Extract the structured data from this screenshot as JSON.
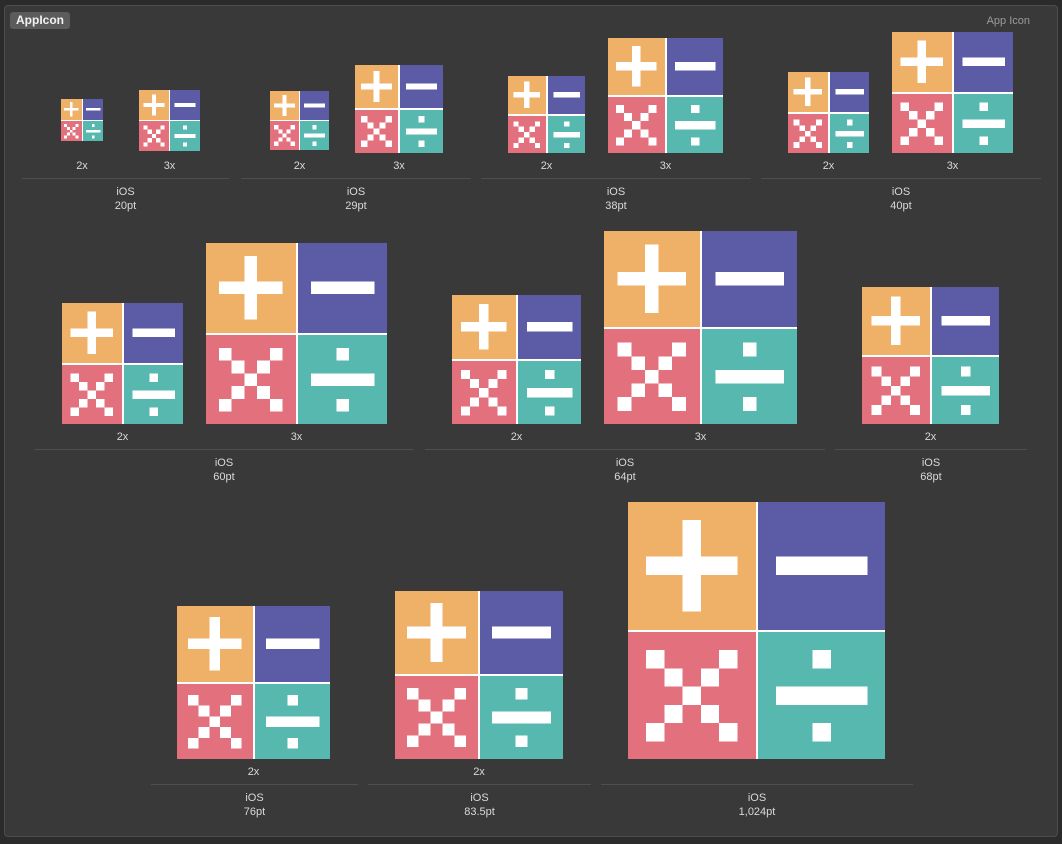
{
  "header": {
    "title": "AppIcon",
    "type_label": "App Icon"
  },
  "colors": {
    "background": "#393939",
    "plus": "#EFB067",
    "minus": "#5C5BA6",
    "times": "#E2707D",
    "divide": "#57B8B0",
    "symbol": "#FFFFFF"
  },
  "icon_quadrants": [
    "plus-icon",
    "minus-icon",
    "times-icon",
    "divide-icon"
  ],
  "groups": [
    {
      "platform": "iOS",
      "size": "20pt",
      "slots": [
        "2x",
        "3x"
      ]
    },
    {
      "platform": "iOS",
      "size": "29pt",
      "slots": [
        "2x",
        "3x"
      ]
    },
    {
      "platform": "iOS",
      "size": "38pt",
      "slots": [
        "2x",
        "3x"
      ]
    },
    {
      "platform": "iOS",
      "size": "40pt",
      "slots": [
        "2x",
        "3x"
      ]
    },
    {
      "platform": "iOS",
      "size": "60pt",
      "slots": [
        "2x",
        "3x"
      ]
    },
    {
      "platform": "iOS",
      "size": "64pt",
      "slots": [
        "2x",
        "3x"
      ]
    },
    {
      "platform": "iOS",
      "size": "68pt",
      "slots": [
        "2x"
      ]
    },
    {
      "platform": "iOS",
      "size": "76pt",
      "slots": [
        "2x"
      ]
    },
    {
      "platform": "iOS",
      "size": "83.5pt",
      "slots": [
        "2x"
      ]
    },
    {
      "platform": "iOS",
      "size": "1,024pt",
      "slots": []
    }
  ]
}
